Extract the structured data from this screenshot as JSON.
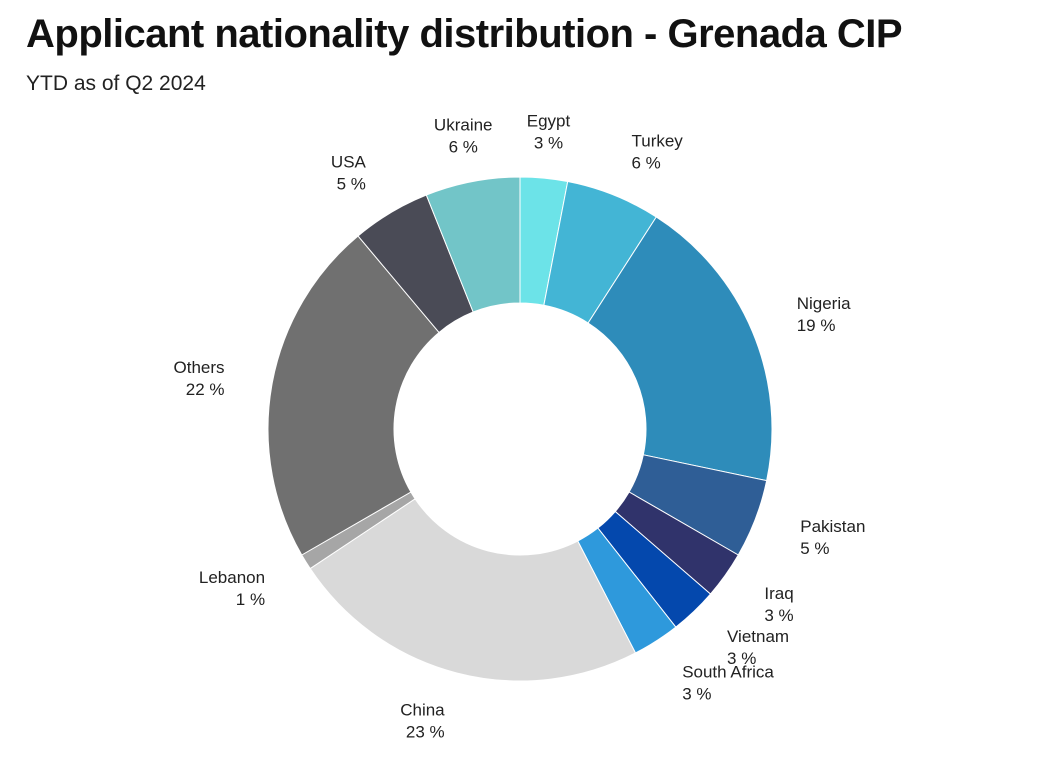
{
  "chart_data": {
    "type": "pie",
    "variant": "donut",
    "title": "Applicant nationality distribution - Grenada CIP",
    "subtitle": "YTD as of Q2 2024",
    "value_suffix": " %",
    "start": "12 o'clock, clockwise",
    "slices": [
      {
        "label": "Egypt",
        "value": 3,
        "color": "#6ce3e8"
      },
      {
        "label": "Turkey",
        "value": 6,
        "color": "#43b5d5"
      },
      {
        "label": "Nigeria",
        "value": 19,
        "color": "#2e8cba"
      },
      {
        "label": "Pakistan",
        "value": 5,
        "color": "#2f5e96"
      },
      {
        "label": "Iraq",
        "value": 3,
        "color": "#30336b"
      },
      {
        "label": "Vietnam",
        "value": 3,
        "color": "#0448ad"
      },
      {
        "label": "South Africa",
        "value": 3,
        "color": "#2e99dc"
      },
      {
        "label": "China",
        "value": 23,
        "color": "#d9d9d9"
      },
      {
        "label": "Lebanon",
        "value": 1,
        "color": "#a6a6a6"
      },
      {
        "label": "Others",
        "value": 22,
        "color": "#707070"
      },
      {
        "label": "USA",
        "value": 5,
        "color": "#4a4b56"
      },
      {
        "label": "Ukraine",
        "value": 6,
        "color": "#72c5c8"
      }
    ]
  }
}
